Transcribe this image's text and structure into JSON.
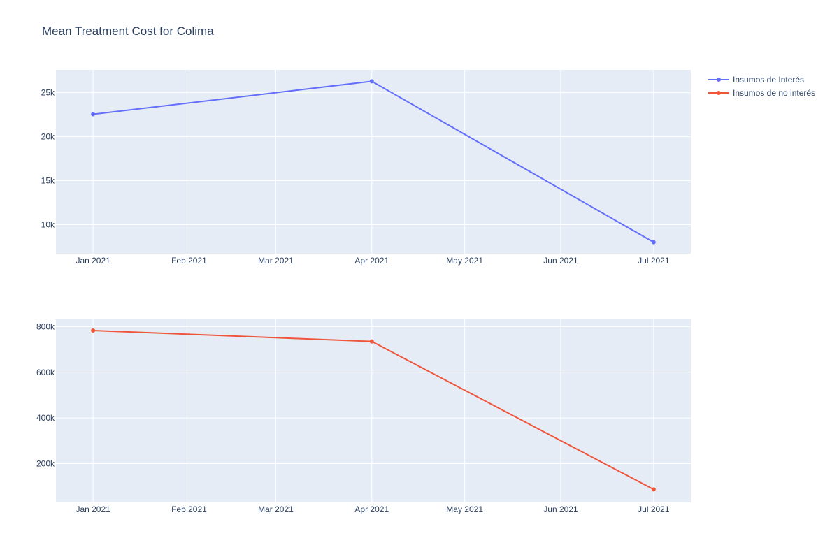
{
  "chart_data": {
    "type": "line",
    "title": "Mean Treatment Cost for Colima",
    "background_color": "#e5ecf6",
    "grid": true,
    "legend_position": "top-right",
    "x_tick_labels": [
      "Jan 2021",
      "Feb 2021",
      "Mar 2021",
      "Apr 2021",
      "May 2021",
      "Jun 2021",
      "Jul 2021"
    ],
    "x_tick_dates": [
      "2021-01-01",
      "2021-02-01",
      "2021-03-01",
      "2021-04-01",
      "2021-05-01",
      "2021-06-01",
      "2021-07-01"
    ],
    "xlim": [
      "2020-12-20",
      "2021-07-13"
    ],
    "subplots": [
      {
        "series": {
          "name": "Insumos de Interés",
          "color": "#636efa",
          "x": [
            "2021-01-01",
            "2021-04-01",
            "2021-07-01"
          ],
          "y": [
            22550,
            26300,
            8000
          ]
        },
        "ylim": [
          6700,
          27600
        ],
        "y_ticks": [
          10000,
          15000,
          20000,
          25000
        ],
        "y_tick_labels": [
          "10k",
          "15k",
          "20k",
          "25k"
        ]
      },
      {
        "series": {
          "name": "Insumos de no interés",
          "color": "#ef553b",
          "x": [
            "2021-01-01",
            "2021-04-01",
            "2021-07-01"
          ],
          "y": [
            783000,
            735000,
            87000
          ]
        },
        "ylim": [
          30000,
          835000
        ],
        "y_ticks": [
          200000,
          400000,
          600000,
          800000
        ],
        "y_tick_labels": [
          "200k",
          "400k",
          "600k",
          "800k"
        ]
      }
    ]
  }
}
